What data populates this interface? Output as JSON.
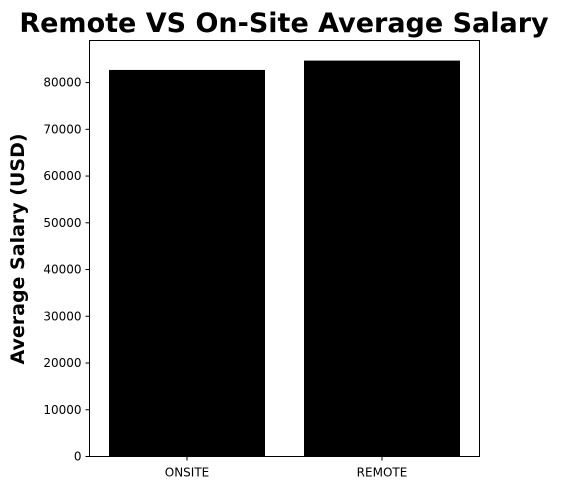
{
  "chart_data": {
    "type": "bar",
    "title": "Remote VS On-Site Average Salary",
    "xlabel": "",
    "ylabel": "Average Salary (USD)",
    "categories": [
      "ONSITE",
      "REMOTE"
    ],
    "values": [
      82700,
      84700
    ],
    "ylim": [
      0,
      89000
    ],
    "yticks": [
      0,
      10000,
      20000,
      30000,
      40000,
      50000,
      60000,
      70000,
      80000
    ],
    "bar_color": "#000000",
    "grid": false,
    "legend": "none"
  }
}
